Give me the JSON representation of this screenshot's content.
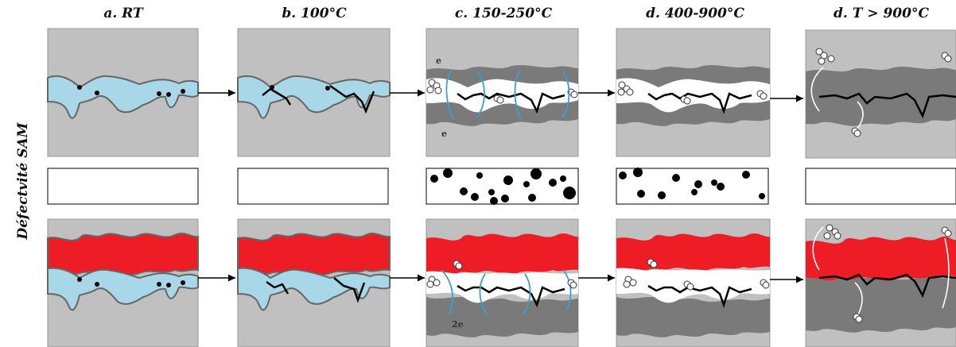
{
  "columns": [
    {
      "title": "a. RT"
    },
    {
      "title": "b. 100°C"
    },
    {
      "title": "c. 150-250°C"
    },
    {
      "title": "d. 400-900°C"
    },
    {
      "title": "d. T > 900°C"
    }
  ],
  "side_label": "Défectvité SAM",
  "annotations": {
    "electron_top": "e",
    "electron_bottom": "e",
    "electron_pair": "2e"
  },
  "colors": {
    "panel_bg": "#c0c0c0",
    "void_blue": "#a8d8e8",
    "oxide_dark": "#7a7a7a",
    "metal_red": "#ee1c25",
    "cavity_white": "#ffffff",
    "field_line_blue": "#3a9fd6",
    "arrow": "#000000"
  },
  "icons": [
    "right-arrow-icon",
    "oxygen-molecule-icon",
    "sam-defect-dot-icon"
  ]
}
